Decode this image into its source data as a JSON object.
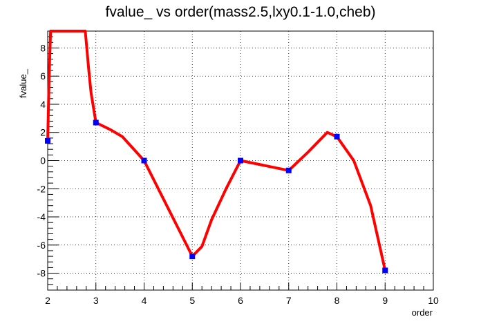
{
  "chart_data": {
    "type": "line",
    "title": "fvalue_ vs order(mass2.5,lxy0.1-1.0,cheb)",
    "xlabel": "order",
    "ylabel": "fvalue_",
    "xlim": [
      2,
      10
    ],
    "ylim": [
      -9.2,
      9.2
    ],
    "x_ticks": [
      2,
      3,
      4,
      5,
      6,
      7,
      8,
      9,
      10
    ],
    "y_ticks": [
      -8,
      -6,
      -4,
      -2,
      0,
      2,
      4,
      6,
      8
    ],
    "grid": true,
    "legend": "none",
    "series": [
      {
        "color": "#0000ff",
        "marker": "square",
        "points": [
          {
            "x": 2,
            "y": 1.4
          },
          {
            "x": 3,
            "y": 2.7
          },
          {
            "x": 4,
            "y": 0.0
          },
          {
            "x": 5,
            "y": -6.8
          },
          {
            "x": 6,
            "y": 0.0
          },
          {
            "x": 7,
            "y": -0.7
          },
          {
            "x": 8,
            "y": 1.7
          },
          {
            "x": 9,
            "y": -7.8
          }
        ]
      },
      {
        "color": "#ff0000",
        "style": "smooth-curve",
        "points": [
          {
            "x": 2.0,
            "y": 1.4
          },
          {
            "x": 2.03,
            "y": 6.0
          },
          {
            "x": 2.06,
            "y": 9.2
          },
          {
            "x": 2.78,
            "y": 9.2
          },
          {
            "x": 2.85,
            "y": 6.5
          },
          {
            "x": 2.9,
            "y": 4.8
          },
          {
            "x": 3.0,
            "y": 2.7
          },
          {
            "x": 3.3,
            "y": 2.2
          },
          {
            "x": 3.55,
            "y": 1.7
          },
          {
            "x": 4.0,
            "y": 0.0
          },
          {
            "x": 4.5,
            "y": -3.4
          },
          {
            "x": 5.0,
            "y": -6.8
          },
          {
            "x": 5.2,
            "y": -6.1
          },
          {
            "x": 5.4,
            "y": -4.2
          },
          {
            "x": 5.7,
            "y": -2.0
          },
          {
            "x": 6.0,
            "y": 0.0
          },
          {
            "x": 7.0,
            "y": -0.7
          },
          {
            "x": 7.4,
            "y": 0.6
          },
          {
            "x": 7.8,
            "y": 2.0
          },
          {
            "x": 8.0,
            "y": 1.7
          },
          {
            "x": 8.35,
            "y": 0.0
          },
          {
            "x": 8.7,
            "y": -3.2
          },
          {
            "x": 9.0,
            "y": -7.8
          }
        ]
      }
    ]
  }
}
